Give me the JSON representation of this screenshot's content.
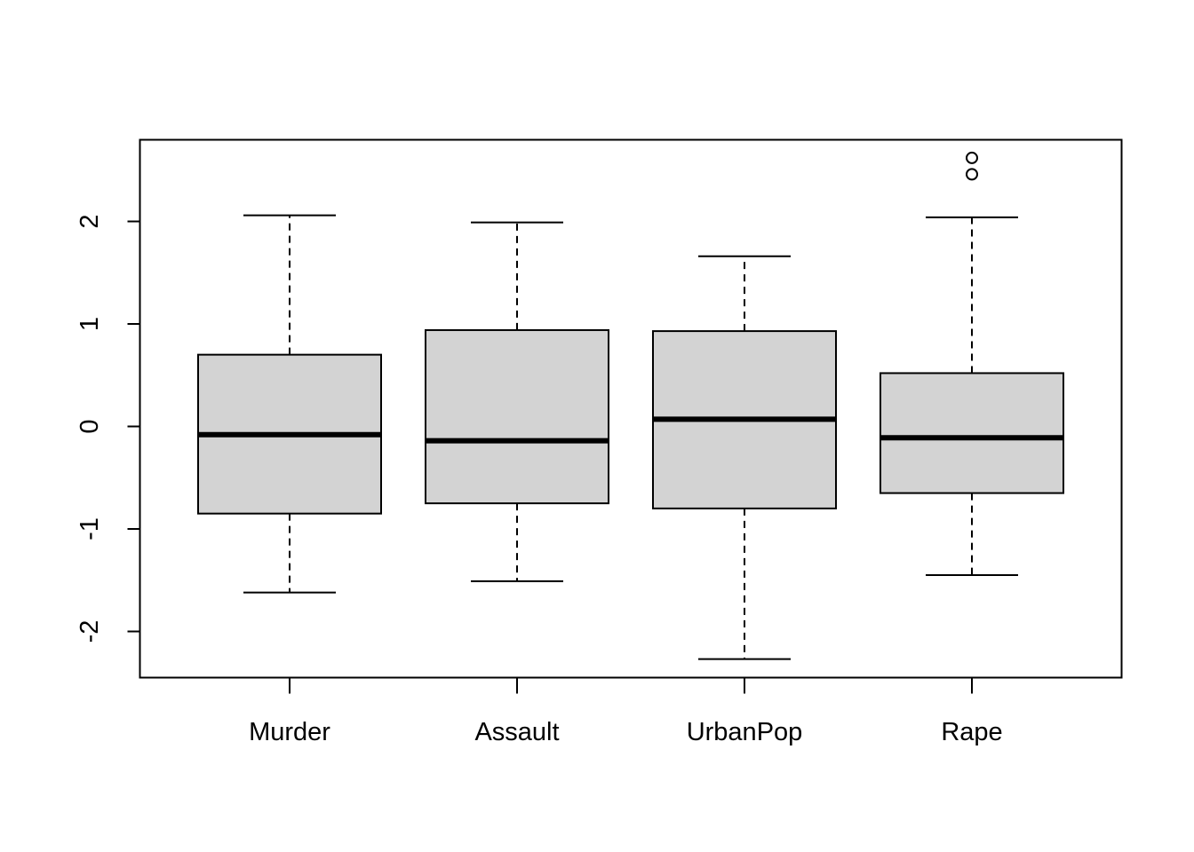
{
  "chart_data": {
    "type": "boxplot",
    "categories": [
      "Murder",
      "Assault",
      "UrbanPop",
      "Rape"
    ],
    "boxes": [
      {
        "name": "Murder",
        "whisker_low": -1.62,
        "q1": -0.85,
        "median": -0.08,
        "q3": 0.7,
        "whisker_high": 2.06,
        "outliers": []
      },
      {
        "name": "Assault",
        "whisker_low": -1.51,
        "q1": -0.75,
        "median": -0.14,
        "q3": 0.94,
        "whisker_high": 1.99,
        "outliers": []
      },
      {
        "name": "UrbanPop",
        "whisker_low": -2.27,
        "q1": -0.8,
        "median": 0.07,
        "q3": 0.93,
        "whisker_high": 1.66,
        "outliers": []
      },
      {
        "name": "Rape",
        "whisker_low": -1.45,
        "q1": -0.65,
        "median": -0.11,
        "q3": 0.52,
        "whisker_high": 2.04,
        "outliers": [
          2.46,
          2.62
        ]
      }
    ],
    "yticks": [
      -2,
      -1,
      0,
      1,
      2
    ],
    "ylim": [
      -2.45,
      2.8
    ],
    "xlabel": "",
    "ylabel": "",
    "title": "",
    "grid": false,
    "colors": {
      "box_fill": "#d3d3d3",
      "stroke": "#000000"
    }
  }
}
